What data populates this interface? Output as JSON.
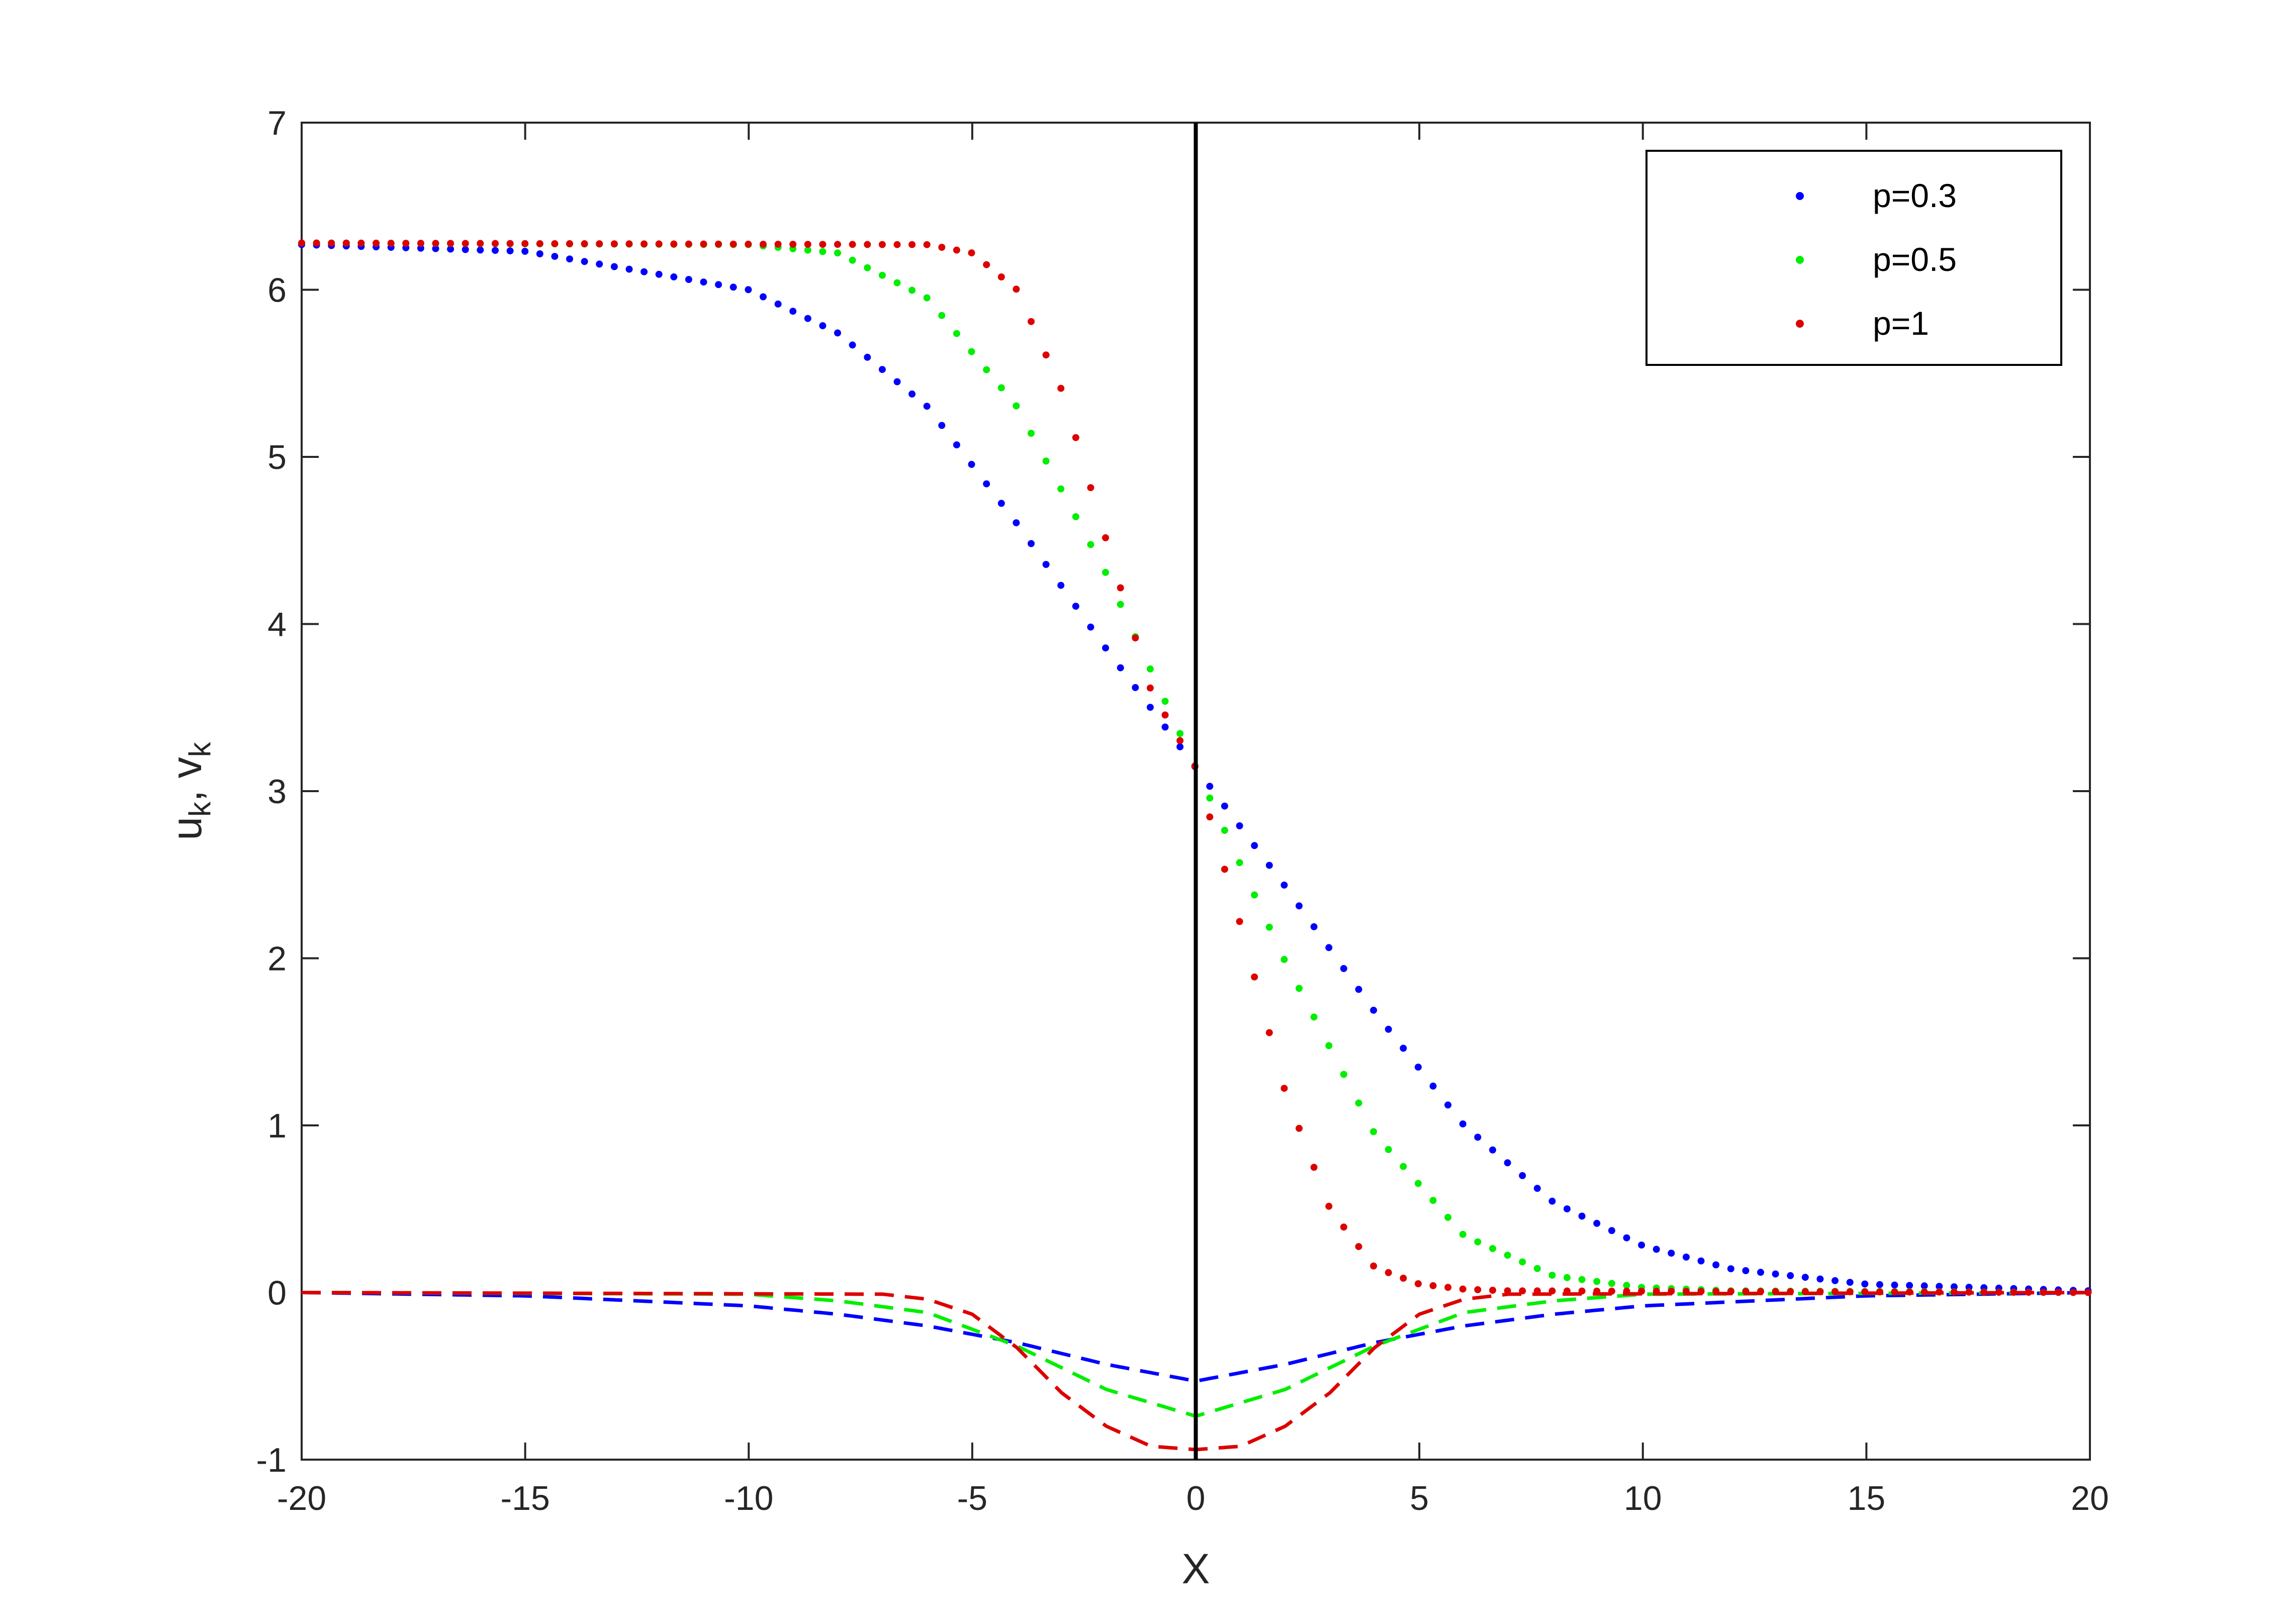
{
  "chart_data": {
    "type": "scatter",
    "xlabel": "X",
    "ylabel_main": "u",
    "ylabel_sub1": "k",
    "ylabel_sep": ", v",
    "ylabel_sub2": "k",
    "xlim": [
      -20,
      20
    ],
    "ylim": [
      -1,
      7
    ],
    "xticks": [
      -20,
      -15,
      -10,
      -5,
      0,
      5,
      10,
      15,
      20
    ],
    "yticks": [
      -1,
      0,
      1,
      2,
      3,
      4,
      5,
      6,
      7
    ],
    "grid": false,
    "legend_position": "top-right",
    "reference_line_x": 0,
    "sample_step": 0.333,
    "series": [
      {
        "name": "p=0.3",
        "color": "#0000ff",
        "u_samples": [
          [
            -20,
            6.27
          ],
          [
            -15,
            6.23
          ],
          [
            -10,
            6.0
          ],
          [
            -8,
            5.74
          ],
          [
            -6,
            5.3
          ],
          [
            -4,
            4.6
          ],
          [
            -2,
            3.85
          ],
          [
            0,
            3.14
          ],
          [
            2,
            2.43
          ],
          [
            4,
            1.68
          ],
          [
            6,
            1.0
          ],
          [
            8,
            0.54
          ],
          [
            10,
            0.28
          ],
          [
            12,
            0.14
          ],
          [
            15,
            0.05
          ],
          [
            20,
            0.01
          ]
        ],
        "v_samples": [
          [
            -20,
            0
          ],
          [
            -15,
            -0.02
          ],
          [
            -10,
            -0.08
          ],
          [
            -8,
            -0.13
          ],
          [
            -6,
            -0.2
          ],
          [
            -4,
            -0.3
          ],
          [
            -2,
            -0.43
          ],
          [
            0,
            -0.53
          ],
          [
            2,
            -0.43
          ],
          [
            4,
            -0.3
          ],
          [
            6,
            -0.2
          ],
          [
            8,
            -0.13
          ],
          [
            10,
            -0.08
          ],
          [
            15,
            -0.02
          ],
          [
            20,
            0
          ]
        ]
      },
      {
        "name": "p=0.5",
        "color": "#00ee00",
        "u_samples": [
          [
            -20,
            6.28
          ],
          [
            -10,
            6.27
          ],
          [
            -8,
            6.22
          ],
          [
            -6,
            5.95
          ],
          [
            -4,
            5.3
          ],
          [
            -2,
            4.3
          ],
          [
            0,
            3.14
          ],
          [
            2,
            1.98
          ],
          [
            4,
            0.95
          ],
          [
            6,
            0.34
          ],
          [
            8,
            0.1
          ],
          [
            10,
            0.03
          ],
          [
            12,
            0.01
          ],
          [
            20,
            0
          ]
        ],
        "v_samples": [
          [
            -20,
            0
          ],
          [
            -10,
            -0.01
          ],
          [
            -8,
            -0.05
          ],
          [
            -6,
            -0.12
          ],
          [
            -4,
            -0.32
          ],
          [
            -2,
            -0.58
          ],
          [
            0,
            -0.74
          ],
          [
            2,
            -0.58
          ],
          [
            4,
            -0.32
          ],
          [
            6,
            -0.12
          ],
          [
            8,
            -0.05
          ],
          [
            10,
            -0.01
          ],
          [
            20,
            0
          ]
        ]
      },
      {
        "name": "p=1",
        "color": "#dd0000",
        "u_samples": [
          [
            -20,
            6.28
          ],
          [
            -6,
            6.27
          ],
          [
            -5,
            6.22
          ],
          [
            -4,
            6.0
          ],
          [
            -3,
            5.4
          ],
          [
            -2,
            4.5
          ],
          [
            -1,
            3.6
          ],
          [
            0,
            3.14
          ],
          [
            1,
            2.2
          ],
          [
            2,
            1.2
          ],
          [
            3,
            0.5
          ],
          [
            4,
            0.15
          ],
          [
            5,
            0.05
          ],
          [
            6,
            0.02
          ],
          [
            7,
            0.01
          ],
          [
            20,
            0
          ]
        ],
        "v_samples": [
          [
            -20,
            0
          ],
          [
            -7,
            -0.01
          ],
          [
            -6,
            -0.04
          ],
          [
            -5,
            -0.13
          ],
          [
            -4,
            -0.33
          ],
          [
            -3,
            -0.6
          ],
          [
            -2,
            -0.8
          ],
          [
            -1,
            -0.92
          ],
          [
            0,
            -0.94
          ],
          [
            1,
            -0.92
          ],
          [
            2,
            -0.8
          ],
          [
            3,
            -0.6
          ],
          [
            4,
            -0.33
          ],
          [
            5,
            -0.13
          ],
          [
            6,
            -0.04
          ],
          [
            7,
            -0.01
          ],
          [
            20,
            0
          ]
        ]
      }
    ]
  }
}
